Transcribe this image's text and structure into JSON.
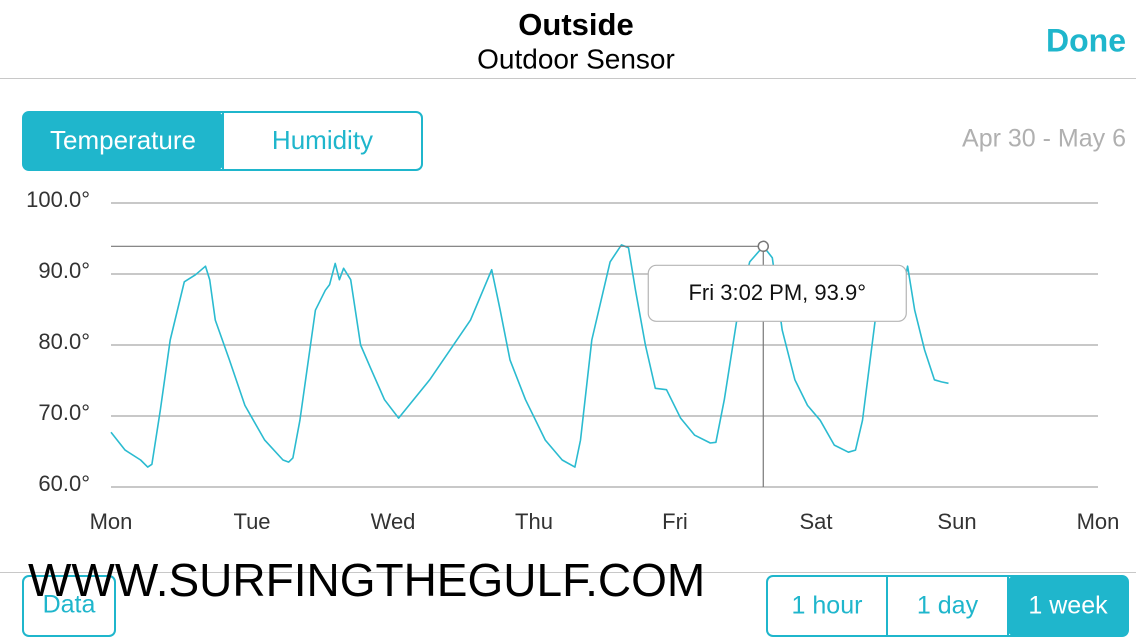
{
  "header": {
    "title": "Outside",
    "subtitle": "Outdoor Sensor",
    "done": "Done"
  },
  "tabs": {
    "items": [
      "Temperature",
      "Humidity"
    ],
    "selected": 0
  },
  "date_range": "Apr 30 - May 6",
  "chart_data": {
    "type": "line",
    "color": "#2bbbd0",
    "x": [
      0,
      0.1,
      0.21,
      0.26,
      0.29,
      0.35,
      0.42,
      0.52,
      0.6,
      0.67,
      0.7,
      0.74,
      0.84,
      0.95,
      1.09,
      1.22,
      1.26,
      1.29,
      1.34,
      1.45,
      1.52,
      1.55,
      1.59,
      1.62,
      1.65,
      1.7,
      1.77,
      1.84,
      1.94,
      2.04,
      2.26,
      2.55,
      2.7,
      2.76,
      2.83,
      2.94,
      3.08,
      3.2,
      3.29,
      3.33,
      3.41,
      3.54,
      3.62,
      3.67,
      3.72,
      3.79,
      3.86,
      3.94,
      4.04,
      4.14,
      4.25,
      4.29,
      4.35,
      4.46,
      4.53,
      4.626,
      4.69,
      4.76,
      4.85,
      4.94,
      5.03,
      5.13,
      5.23,
      5.28,
      5.33,
      5.42,
      5.52,
      5.6,
      5.65,
      5.7,
      5.77,
      5.84,
      5.89,
      5.94
    ],
    "values": [
      67.7,
      65.2,
      63.8,
      62.8,
      63.2,
      70.8,
      80.7,
      88.9,
      89.9,
      91.1,
      89.2,
      83.5,
      77.9,
      71.5,
      66.6,
      63.8,
      63.5,
      64.1,
      69.4,
      84.9,
      87.7,
      88.5,
      91.5,
      89.2,
      90.8,
      89.2,
      80.0,
      76.8,
      72.3,
      69.7,
      75.1,
      83.5,
      90.6,
      84.9,
      77.9,
      72.3,
      66.6,
      63.8,
      62.8,
      66.6,
      80.7,
      91.7,
      94.1,
      93.7,
      87.7,
      80.0,
      73.9,
      73.7,
      69.7,
      67.3,
      66.2,
      66.3,
      72.3,
      86.3,
      91.7,
      93.9,
      92.3,
      82.1,
      75.1,
      71.5,
      69.4,
      65.9,
      64.9,
      65.2,
      69.4,
      83.5,
      88.5,
      86.3,
      91.1,
      84.9,
      79.3,
      75.1,
      74.8,
      74.6
    ],
    "xlim": [
      0,
      7
    ],
    "xticks": [
      {
        "value": 0,
        "label": "Mon"
      },
      {
        "value": 1,
        "label": "Tue"
      },
      {
        "value": 2,
        "label": "Wed"
      },
      {
        "value": 3,
        "label": "Thu"
      },
      {
        "value": 4,
        "label": "Fri"
      },
      {
        "value": 5,
        "label": "Sat"
      },
      {
        "value": 6,
        "label": "Sun"
      },
      {
        "value": 7,
        "label": "Mon"
      }
    ],
    "ylim": [
      60,
      100
    ],
    "yticks": [
      {
        "value": 60,
        "label": "60.0°"
      },
      {
        "value": 70,
        "label": "70.0°"
      },
      {
        "value": 80,
        "label": "80.0°"
      },
      {
        "value": 90,
        "label": "90.0°"
      },
      {
        "value": 100,
        "label": "100.0°"
      }
    ],
    "grid": true,
    "highlight": {
      "x": 4.626,
      "y": 93.9,
      "label": "Fri 3:02 PM, 93.9°"
    }
  },
  "footer": {
    "data_button": "Data",
    "ranges": [
      "1 hour",
      "1 day",
      "1 week"
    ],
    "selected": 2
  },
  "watermark": "WWW.SURFINGTHEGULF.COM"
}
